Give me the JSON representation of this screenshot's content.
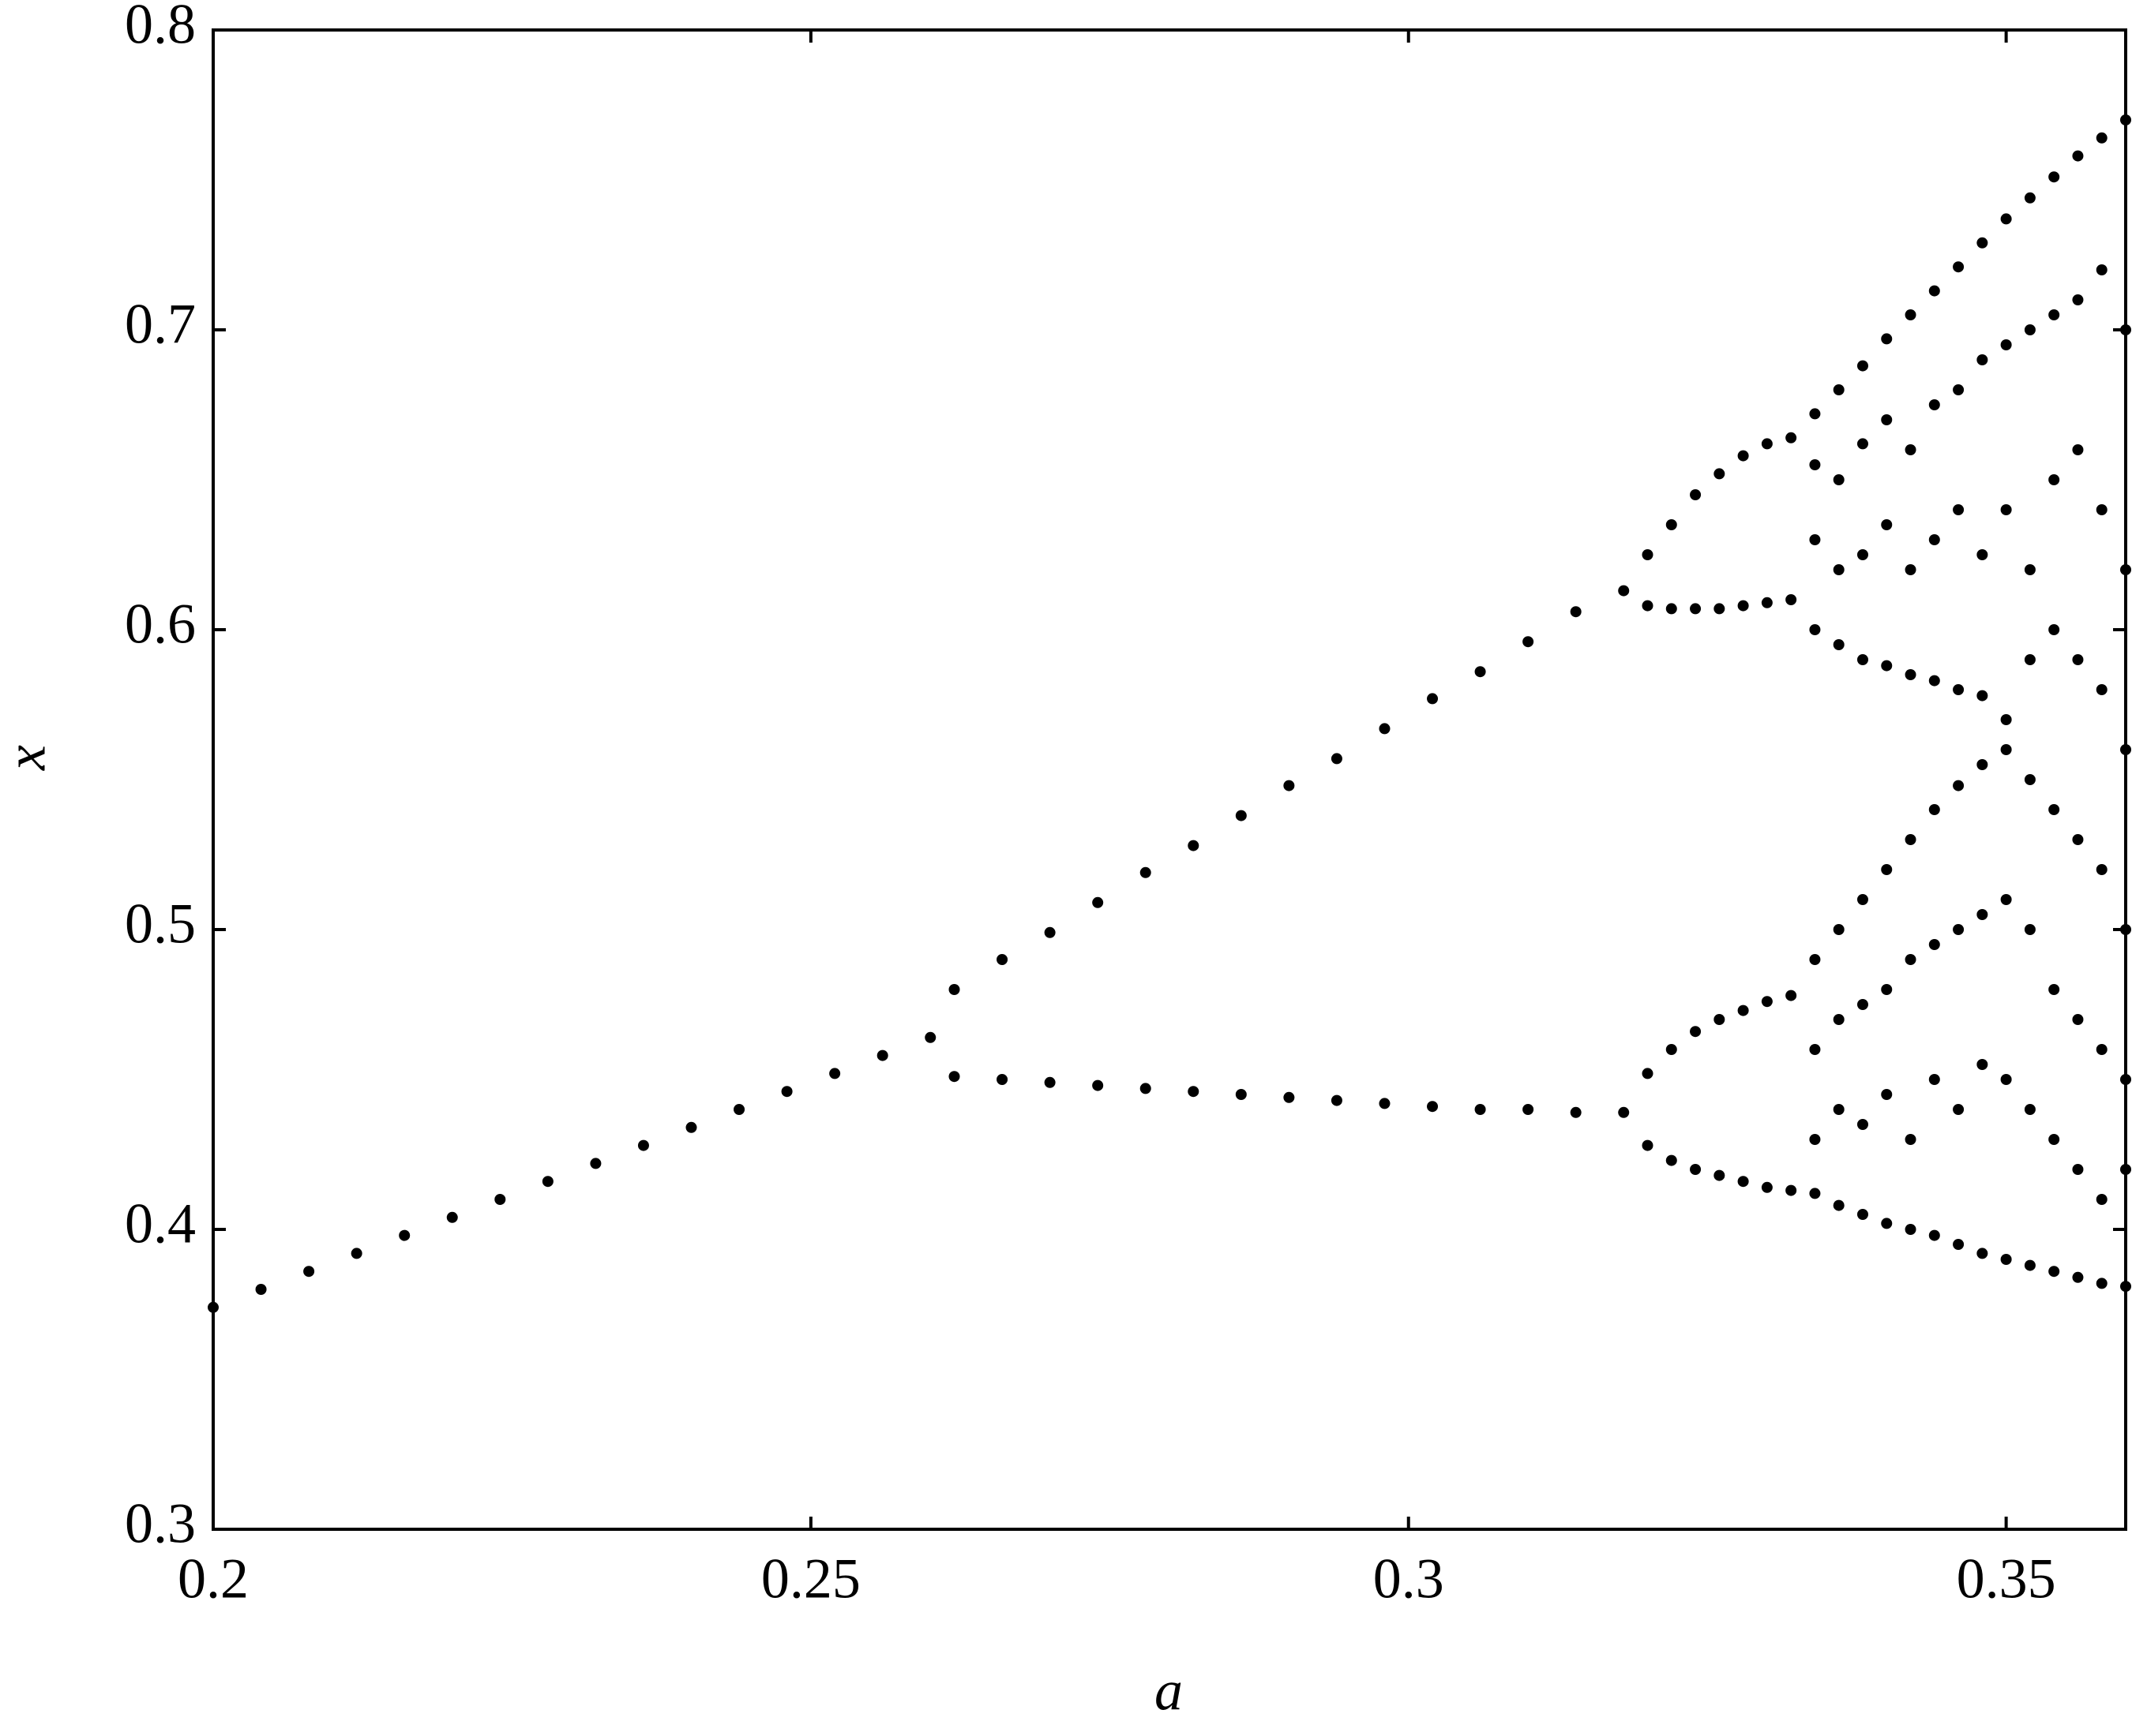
{
  "chart_data": {
    "type": "scatter",
    "x_label": "a",
    "y_label": "x",
    "color": "#000000",
    "xlim": [
      0.2,
      0.36
    ],
    "ylim": [
      0.3,
      0.8
    ],
    "xticks": [
      0.2,
      0.25,
      0.3,
      0.35
    ],
    "yticks": [
      0.3,
      0.4,
      0.5,
      0.6,
      0.7,
      0.8
    ],
    "x": [
      0.2,
      0.204,
      0.208,
      0.212,
      0.216,
      0.22,
      0.224,
      0.228,
      0.232,
      0.236,
      0.24,
      0.244,
      0.248,
      0.252,
      0.256,
      0.26,
      0.262,
      0.266,
      0.27,
      0.274,
      0.278,
      0.282,
      0.286,
      0.29,
      0.294,
      0.298,
      0.302,
      0.306,
      0.31,
      0.314,
      0.318,
      0.262,
      0.266,
      0.27,
      0.274,
      0.278,
      0.282,
      0.286,
      0.29,
      0.294,
      0.298,
      0.302,
      0.306,
      0.31,
      0.314,
      0.318,
      0.32,
      0.322,
      0.324,
      0.326,
      0.328,
      0.33,
      0.332,
      0.32,
      0.322,
      0.324,
      0.326,
      0.328,
      0.33,
      0.332,
      0.32,
      0.322,
      0.324,
      0.326,
      0.328,
      0.33,
      0.332,
      0.32,
      0.322,
      0.324,
      0.326,
      0.328,
      0.33,
      0.332,
      0.334,
      0.334,
      0.334,
      0.334,
      0.334,
      0.334,
      0.334,
      0.334,
      0.336,
      0.336,
      0.336,
      0.336,
      0.336,
      0.336,
      0.336,
      0.336,
      0.338,
      0.338,
      0.338,
      0.338,
      0.338,
      0.338,
      0.338,
      0.338,
      0.34,
      0.34,
      0.34,
      0.34,
      0.34,
      0.34,
      0.34,
      0.34,
      0.342,
      0.342,
      0.342,
      0.342,
      0.342,
      0.342,
      0.342,
      0.342,
      0.344,
      0.344,
      0.344,
      0.344,
      0.344,
      0.344,
      0.344,
      0.344,
      0.346,
      0.346,
      0.346,
      0.346,
      0.346,
      0.346,
      0.346,
      0.346,
      0.348,
      0.348,
      0.348,
      0.348,
      0.348,
      0.348,
      0.348,
      0.348,
      0.35,
      0.35,
      0.35,
      0.35,
      0.35,
      0.35,
      0.35,
      0.35,
      0.352,
      0.352,
      0.352,
      0.352,
      0.352,
      0.352,
      0.352,
      0.352,
      0.354,
      0.354,
      0.354,
      0.354,
      0.354,
      0.354,
      0.354,
      0.354,
      0.356,
      0.356,
      0.356,
      0.356,
      0.356,
      0.356,
      0.356,
      0.356,
      0.358,
      0.358,
      0.358,
      0.358,
      0.358,
      0.358,
      0.358,
      0.358,
      0.36,
      0.36,
      0.36,
      0.36,
      0.36,
      0.36,
      0.36,
      0.36
    ],
    "values": [
      0.374,
      0.38,
      0.386,
      0.392,
      0.398,
      0.404,
      0.41,
      0.416,
      0.422,
      0.428,
      0.434,
      0.44,
      0.446,
      0.452,
      0.458,
      0.464,
      0.48,
      0.49,
      0.499,
      0.509,
      0.519,
      0.528,
      0.538,
      0.548,
      0.557,
      0.567,
      0.577,
      0.586,
      0.596,
      0.606,
      0.613,
      0.451,
      0.45,
      0.449,
      0.448,
      0.447,
      0.446,
      0.445,
      0.444,
      0.443,
      0.442,
      0.441,
      0.44,
      0.44,
      0.439,
      0.439,
      0.625,
      0.635,
      0.645,
      0.652,
      0.658,
      0.662,
      0.664,
      0.608,
      0.607,
      0.607,
      0.607,
      0.608,
      0.609,
      0.61,
      0.452,
      0.46,
      0.466,
      0.47,
      0.473,
      0.476,
      0.478,
      0.428,
      0.423,
      0.42,
      0.418,
      0.416,
      0.414,
      0.413,
      0.672,
      0.655,
      0.63,
      0.6,
      0.49,
      0.46,
      0.43,
      0.412,
      0.68,
      0.65,
      0.62,
      0.595,
      0.5,
      0.47,
      0.44,
      0.408,
      0.688,
      0.662,
      0.625,
      0.59,
      0.51,
      0.475,
      0.435,
      0.405,
      0.697,
      0.67,
      0.635,
      0.588,
      0.52,
      0.48,
      0.445,
      0.402,
      0.705,
      0.66,
      0.62,
      0.585,
      0.53,
      0.49,
      0.43,
      0.4,
      0.713,
      0.675,
      0.63,
      0.583,
      0.54,
      0.495,
      0.45,
      0.398,
      0.721,
      0.68,
      0.64,
      0.58,
      0.548,
      0.5,
      0.44,
      0.395,
      0.729,
      0.69,
      0.625,
      0.578,
      0.555,
      0.505,
      0.455,
      0.392,
      0.737,
      0.695,
      0.64,
      0.57,
      0.56,
      0.51,
      0.45,
      0.39,
      0.744,
      0.7,
      0.62,
      0.59,
      0.55,
      0.5,
      0.44,
      0.388,
      0.751,
      0.705,
      0.65,
      0.6,
      0.54,
      0.48,
      0.43,
      0.386,
      0.758,
      0.71,
      0.66,
      0.59,
      0.53,
      0.47,
      0.42,
      0.384,
      0.764,
      0.72,
      0.64,
      0.58,
      0.52,
      0.46,
      0.41,
      0.382,
      0.77,
      0.7,
      0.62,
      0.56,
      0.5,
      0.45,
      0.42,
      0.381
    ]
  }
}
